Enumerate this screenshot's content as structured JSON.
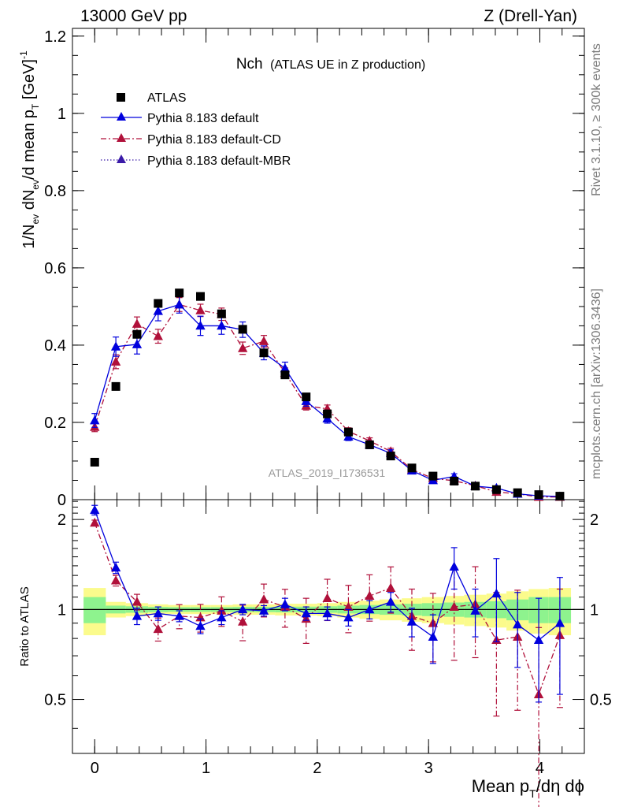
{
  "header": {
    "left": "13000 GeV pp",
    "right": "Z (Drell-Yan)"
  },
  "plot": {
    "title_main": "Nch",
    "title_sub": "(ATLAS UE in Z production)",
    "watermark": "ATLAS_2019_I1736531",
    "side_rivet": "Rivet 3.1.10, ≥ 300k events",
    "side_mcplots": "mcplots.cern.ch [arXiv:1306.3436]"
  },
  "axes": {
    "ylabel_main": {
      "base": "1/N",
      "sub1": "ev",
      "mid": " dN",
      "sub2": "ev",
      "mid2": "/d mean p",
      "sub3": "T",
      "tail": " [GeV]",
      "sup": "-1"
    },
    "ylabel_ratio": "Ratio to ATLAS",
    "xlabel": {
      "base": "Mean p",
      "sub": "T",
      "tail": "/dη dϕ"
    }
  },
  "colors": {
    "data": "#000000",
    "default": "#0000dd",
    "cd": "#b0103a",
    "mbr": "#3a1aa8",
    "band_yellow": "#fbfb8c",
    "band_green": "#8ef38e"
  },
  "chart_data": [
    {
      "type": "scatter",
      "panel": "main",
      "xlim": [
        -0.2,
        4.4
      ],
      "ylim": [
        0,
        1.22
      ],
      "xticks": [
        0,
        1,
        2,
        3,
        4
      ],
      "yticks": [
        0,
        0.2,
        0.4,
        0.6,
        0.8,
        1,
        1.2
      ],
      "ytick_labels": [
        "0",
        "0.2",
        "0.4",
        "0.6",
        "0.8",
        "1",
        "1.2"
      ],
      "x": [
        0,
        0.19,
        0.38,
        0.57,
        0.76,
        0.95,
        1.14,
        1.33,
        1.52,
        1.71,
        1.9,
        2.09,
        2.28,
        2.47,
        2.66,
        2.85,
        3.04,
        3.23,
        3.42,
        3.61,
        3.8,
        3.99,
        4.18
      ],
      "series": [
        {
          "name": "ATLAS",
          "key": "data",
          "marker": "square",
          "line": "none",
          "values": [
            0.097,
            0.293,
            0.428,
            0.508,
            0.535,
            0.526,
            0.481,
            0.441,
            0.38,
            0.323,
            0.266,
            0.222,
            0.175,
            0.142,
            0.113,
            0.082,
            0.061,
            0.048,
            0.035,
            0.026,
            0.018,
            0.013,
            0.009
          ],
          "errors": [
            0,
            0,
            0,
            0,
            0,
            0,
            0,
            0,
            0,
            0,
            0,
            0,
            0,
            0,
            0,
            0,
            0,
            0,
            0,
            0,
            0,
            0,
            0
          ]
        },
        {
          "name": "Pythia 8.183 default",
          "key": "default",
          "marker": "triangle",
          "line": "solid",
          "values": [
            0.205,
            0.396,
            0.402,
            0.488,
            0.505,
            0.45,
            0.45,
            0.44,
            0.38,
            0.34,
            0.255,
            0.21,
            0.163,
            0.142,
            0.12,
            0.075,
            0.05,
            0.06,
            0.035,
            0.03,
            0.015,
            0.01,
            0.008
          ],
          "errors": [
            0.018,
            0.025,
            0.025,
            0.025,
            0.022,
            0.025,
            0.022,
            0.02,
            0.018,
            0.016,
            0.013,
            0.012,
            0.01,
            0.01,
            0.009,
            0.007,
            0.006,
            0.007,
            0.005,
            0.005,
            0.004,
            0.003,
            0.003
          ]
        },
        {
          "name": "Pythia 8.183 default-CD",
          "key": "cd",
          "marker": "triangle",
          "line": "dashdot",
          "values": [
            0.188,
            0.357,
            0.455,
            0.423,
            0.505,
            0.49,
            0.48,
            0.392,
            0.41,
            0.328,
            0.243,
            0.235,
            0.177,
            0.152,
            0.125,
            0.078,
            0.055,
            0.049,
            0.036,
            0.02,
            0.015,
            0.007,
            0.007
          ],
          "errors": [
            0.012,
            0.018,
            0.018,
            0.018,
            0.018,
            0.016,
            0.016,
            0.016,
            0.015,
            0.013,
            0.011,
            0.01,
            0.009,
            0.008,
            0.008,
            0.006,
            0.005,
            0.005,
            0.004,
            0.004,
            0.003,
            0.003,
            0.002
          ]
        },
        {
          "name": "Pythia 8.183 default-MBR",
          "key": "mbr",
          "marker": "triangle",
          "line": "dotted",
          "values": [],
          "errors": []
        }
      ]
    },
    {
      "type": "scatter",
      "panel": "ratio",
      "xlim": [
        -0.2,
        4.4
      ],
      "ylim": [
        0.33,
        2.33
      ],
      "xticks": [
        0,
        1,
        2,
        3,
        4
      ],
      "xtick_labels": [
        "0",
        "1",
        "2",
        "3",
        "4"
      ],
      "yticks": [
        0.5,
        1,
        2
      ],
      "ytick_labels": [
        "0.5",
        "1",
        "2"
      ],
      "reference": 1,
      "bands": {
        "edges": [
          -0.1,
          0.1,
          0.28,
          0.48,
          0.66,
          0.86,
          1.04,
          1.24,
          1.42,
          1.62,
          1.8,
          2.0,
          2.18,
          2.38,
          2.56,
          2.76,
          2.94,
          3.14,
          3.32,
          3.52,
          3.7,
          3.9,
          4.08,
          4.28
        ],
        "yellow_half": [
          0.18,
          0.06,
          0.05,
          0.04,
          0.035,
          0.035,
          0.035,
          0.04,
          0.04,
          0.045,
          0.045,
          0.05,
          0.06,
          0.07,
          0.08,
          0.09,
          0.1,
          0.11,
          0.12,
          0.13,
          0.15,
          0.17,
          0.18
        ],
        "green_half": [
          0.1,
          0.03,
          0.025,
          0.02,
          0.018,
          0.018,
          0.018,
          0.02,
          0.02,
          0.022,
          0.022,
          0.025,
          0.03,
          0.035,
          0.04,
          0.045,
          0.05,
          0.055,
          0.06,
          0.065,
          0.08,
          0.1,
          0.1
        ]
      },
      "x": [
        0,
        0.19,
        0.38,
        0.57,
        0.76,
        0.95,
        1.14,
        1.33,
        1.52,
        1.71,
        1.9,
        2.09,
        2.28,
        2.47,
        2.66,
        2.85,
        3.04,
        3.23,
        3.42,
        3.61,
        3.8,
        3.99,
        4.18
      ],
      "series": [
        {
          "name": "Pythia 8.183 default",
          "key": "default",
          "line": "solid",
          "values": [
            2.15,
            1.38,
            0.95,
            0.97,
            0.95,
            0.88,
            0.94,
            1.0,
            0.99,
            1.04,
            0.97,
            0.97,
            0.94,
            1.0,
            1.06,
            0.91,
            0.81,
            1.39,
            0.99,
            1.13,
            0.89,
            0.79,
            0.9
          ],
          "errors": [
            0.08,
            0.06,
            0.06,
            0.05,
            0.04,
            0.05,
            0.05,
            0.04,
            0.04,
            0.05,
            0.05,
            0.05,
            0.06,
            0.07,
            0.08,
            0.1,
            0.15,
            0.22,
            0.18,
            0.35,
            0.25,
            0.3,
            0.38
          ]
        },
        {
          "name": "Pythia 8.183 default-CD",
          "key": "cd",
          "line": "dashdot",
          "values": [
            1.95,
            1.25,
            1.06,
            0.86,
            0.95,
            0.94,
            0.99,
            0.91,
            1.08,
            1.02,
            0.93,
            1.09,
            1.02,
            1.11,
            1.18,
            0.95,
            0.9,
            1.02,
            1.04,
            0.79,
            0.81,
            0.52,
            0.82
          ]
        },
        {
          "name": "Pythia 8.183 default-MBR",
          "key": "mbr",
          "line": "dotted",
          "values": []
        }
      ]
    }
  ]
}
